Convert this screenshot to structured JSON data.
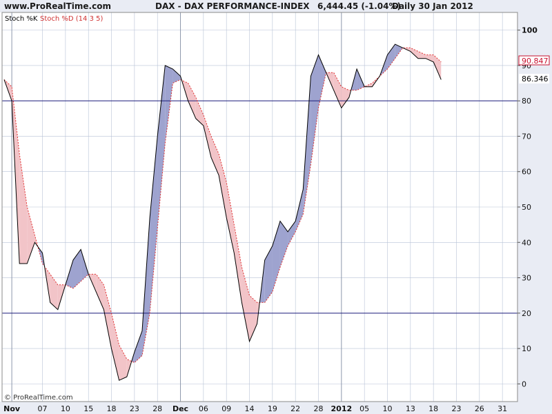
{
  "header": {
    "site": "www.ProRealTime.com",
    "title": "DAX - DAX PERFORMANCE-INDEX",
    "quote": "6,444.45 (-1.04%)",
    "period": "Daily  30 Jan 2012"
  },
  "legend": {
    "k_label": "Stoch %K",
    "d_label": "Stoch %D (14 3 5)"
  },
  "watermark": "© ProRealTime.com",
  "colors": {
    "background": "#ffffff",
    "plot_bg": "#ffffff",
    "gutter": "#e9ecf4",
    "grid": "#b7c2d6",
    "k_line": "#000000",
    "d_line": "#e03030",
    "fill_k_above": "#9ea3cf",
    "fill_d_above": "#f2c4c8",
    "ref_line": "#1a1a7a",
    "d_badge": "#c8102e",
    "k_badge": "#000000"
  },
  "chart_data": {
    "type": "line",
    "title": "DAX - DAX PERFORMANCE-INDEX",
    "ylim": [
      -5,
      105
    ],
    "yticks": [
      0,
      10,
      20,
      30,
      40,
      50,
      60,
      70,
      80,
      90,
      100
    ],
    "ref_lines": [
      20,
      80
    ],
    "grid": true,
    "x_tick_labels": [
      {
        "label": "Nov",
        "index": 1,
        "bold": true
      },
      {
        "label": "07",
        "index": 5
      },
      {
        "label": "10",
        "index": 8
      },
      {
        "label": "15",
        "index": 11
      },
      {
        "label": "18",
        "index": 14
      },
      {
        "label": "23",
        "index": 17
      },
      {
        "label": "28",
        "index": 20
      },
      {
        "label": "Dec",
        "index": 23,
        "bold": true
      },
      {
        "label": "06",
        "index": 26
      },
      {
        "label": "09",
        "index": 29
      },
      {
        "label": "14",
        "index": 32
      },
      {
        "label": "19",
        "index": 35
      },
      {
        "label": "22",
        "index": 38
      },
      {
        "label": "28",
        "index": 41
      },
      {
        "label": "2012",
        "index": 44,
        "bold": true
      },
      {
        "label": "05",
        "index": 47
      },
      {
        "label": "10",
        "index": 50
      },
      {
        "label": "13",
        "index": 53
      },
      {
        "label": "18",
        "index": 56
      },
      {
        "label": "23",
        "index": 59
      },
      {
        "label": "26",
        "index": 62
      },
      {
        "label": "31",
        "index": 65
      }
    ],
    "series": [
      {
        "name": "Stoch %K",
        "style": "solid",
        "values": [
          86,
          80,
          34,
          34,
          40,
          37,
          23,
          21,
          28,
          35,
          38,
          31,
          26,
          21,
          10,
          1,
          2,
          9,
          15,
          47,
          70,
          90,
          89,
          87,
          80,
          75,
          73,
          64,
          59,
          47,
          37,
          23,
          12,
          17,
          35,
          39,
          46,
          43,
          46,
          55,
          87,
          93,
          88,
          83,
          78,
          81,
          89,
          84,
          84,
          87,
          93,
          96,
          95,
          94,
          92,
          92,
          91,
          86
        ]
      },
      {
        "name": "Stoch %D (14 3 5)",
        "style": "dashed",
        "values": [
          86,
          84,
          65,
          50,
          42,
          34,
          31,
          28,
          28,
          27,
          29,
          31,
          31,
          28,
          20,
          11,
          7,
          6,
          8,
          20,
          44,
          68,
          85,
          86,
          85,
          81,
          76,
          70,
          65,
          57,
          45,
          33,
          25,
          23,
          23,
          26,
          33,
          39,
          43,
          48,
          62,
          78,
          88,
          88,
          84,
          83,
          83,
          84,
          85,
          87,
          89,
          92,
          95,
          95,
          94,
          93,
          93,
          91
        ]
      }
    ],
    "last_values": {
      "d": "90.847",
      "k": "86.346"
    }
  }
}
